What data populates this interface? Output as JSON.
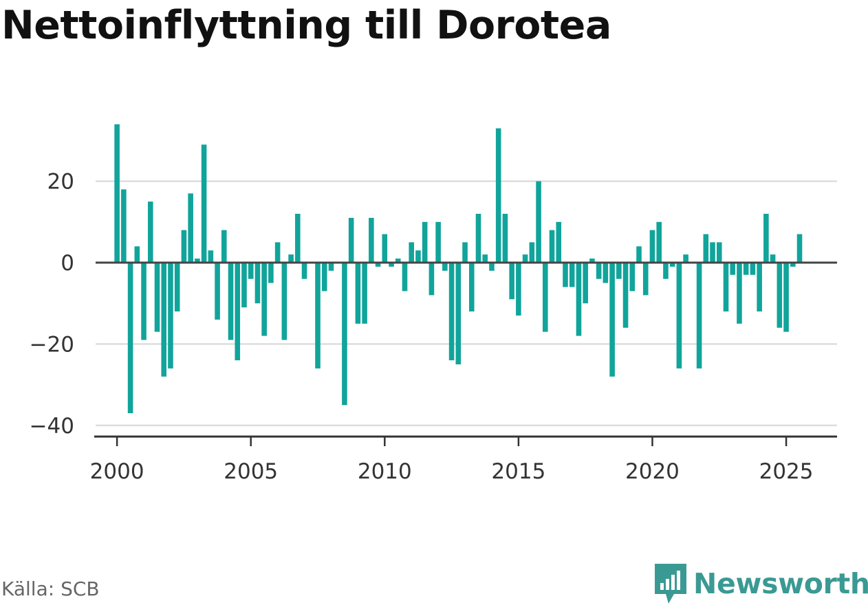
{
  "title": "Nettoinflyttning till Dorotea",
  "source": "Källa: SCB",
  "brand": {
    "name": "Newsworthy",
    "icon": "newsworthy-logo-icon",
    "color": "#3a9a93"
  },
  "colors": {
    "bar": "#11a49b",
    "zero_line": "#444444",
    "grid": "#dddddd",
    "axis": "#333333"
  },
  "chart_data": {
    "type": "bar",
    "title": "Nettoinflyttning till Dorotea",
    "xlabel": "",
    "ylabel": "",
    "frequency": "quarterly",
    "start": "2000-Q1",
    "xlim": [
      1999.2,
      2026.9
    ],
    "ylim": [
      -40,
      36
    ],
    "yticks": [
      20,
      0,
      -20,
      -40
    ],
    "ytick_labels": [
      "20",
      "0",
      "−20",
      "−40"
    ],
    "xticks": [
      2000,
      2005,
      2010,
      2015,
      2020,
      2025
    ],
    "grid": true,
    "legend": "none",
    "values": [
      34,
      18,
      -37,
      4,
      -19,
      15,
      -17,
      -28,
      -26,
      -12,
      8,
      17,
      1,
      29,
      3,
      -14,
      8,
      -19,
      -24,
      -11,
      -4,
      -10,
      -18,
      -5,
      5,
      -19,
      2,
      12,
      -4,
      0,
      -26,
      -7,
      -2,
      0,
      -35,
      11,
      -15,
      -15,
      11,
      -1,
      7,
      -1,
      1,
      -7,
      5,
      3,
      10,
      -8,
      10,
      -2,
      -24,
      -25,
      5,
      -12,
      12,
      2,
      -2,
      33,
      12,
      -9,
      -13,
      2,
      5,
      20,
      -17,
      8,
      10,
      -6,
      -6,
      -18,
      -10,
      1,
      -4,
      -5,
      -28,
      -4,
      -16,
      -7,
      4,
      -8,
      8,
      10,
      -4,
      -1,
      -26,
      2,
      0,
      -26,
      7,
      5,
      5,
      -12,
      -3,
      -15,
      -3,
      -3,
      -12,
      12,
      2,
      -16,
      -17,
      -1,
      7
    ]
  }
}
